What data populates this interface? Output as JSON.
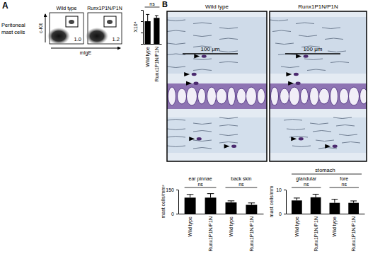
{
  "panels": {
    "A": {
      "letter": "A",
      "row_label": [
        "Peritoneal",
        "mast cells"
      ],
      "flow": {
        "y_axis": "c-Kit",
        "x_axis": "mIgE",
        "plots": [
          {
            "title": "Wild type",
            "gate": "1.0"
          },
          {
            "title": "Runx1P1N/P1N",
            "gate": "1.2"
          }
        ]
      }
    },
    "B": {
      "letter": "B",
      "images": [
        {
          "title": "Wild type",
          "scale_bar": "100 μm"
        },
        {
          "title": "Runx1P1N/P1N",
          "scale_bar": "100 μm"
        }
      ]
    }
  },
  "chart_data": [
    {
      "type": "bar",
      "categories": [
        "Wild type",
        "Runx1P1N/P1N"
      ],
      "values": [
        2.0,
        2.3
      ],
      "errors": [
        0.6,
        0.2
      ],
      "ylim": [
        0,
        3
      ],
      "yticks": [
        0,
        1,
        2,
        3
      ],
      "tick_labels": "x",
      "ylabel": "X10⁴",
      "annotations": [
        "ns"
      ],
      "color": "#000000"
    },
    {
      "type": "bar",
      "categories": [
        "Wild type",
        "Runx1P1N/P1N",
        "Wild type",
        "Runx1P1N/P1N"
      ],
      "values": [
        100,
        100,
        70,
        55
      ],
      "errors": [
        20,
        25,
        10,
        12
      ],
      "ylim": [
        0,
        150
      ],
      "yticks": [
        0,
        150
      ],
      "ylabel": "mast cells/mm²",
      "groups": [
        "ear pinnae",
        "back skin"
      ],
      "annotations": [
        "ns",
        "ns"
      ],
      "color": "#000000"
    },
    {
      "type": "bar",
      "title": "stomach",
      "categories": [
        "Wild type",
        "Runx1P1N/P1N",
        "Wild type",
        "Runx1P1N/P1N"
      ],
      "values": [
        5.5,
        6.8,
        4.5,
        4.5
      ],
      "errors": [
        1.0,
        1.3,
        1.5,
        0.8
      ],
      "ylim": [
        0,
        10
      ],
      "yticks": [
        0,
        10
      ],
      "ylabel": "mast cells/mm",
      "groups": [
        "glandular",
        "fore"
      ],
      "annotations": [
        "ns",
        "ns"
      ],
      "color": "#000000"
    }
  ]
}
